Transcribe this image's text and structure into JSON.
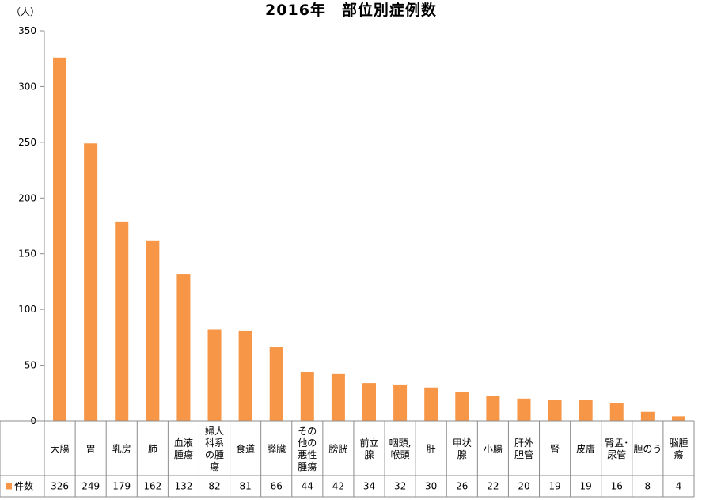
{
  "chart_data": {
    "type": "bar",
    "title": "2016年　部位別症例数",
    "y_unit": "（人）",
    "ylim": [
      0,
      350
    ],
    "y_ticks": [
      0,
      50,
      100,
      150,
      200,
      250,
      300,
      350
    ],
    "grid": false,
    "categories": [
      [
        "大腸"
      ],
      [
        "胃"
      ],
      [
        "乳房"
      ],
      [
        "肺"
      ],
      [
        "血液",
        "腫瘍"
      ],
      [
        "婦人",
        "科系",
        "の腫",
        "瘍"
      ],
      [
        "食道"
      ],
      [
        "膵臓"
      ],
      [
        "その",
        "他の",
        "悪性",
        "腫瘍"
      ],
      [
        "膀胱"
      ],
      [
        "前立",
        "腺"
      ],
      [
        "咽頭,",
        "喉頭"
      ],
      [
        "肝"
      ],
      [
        "甲状",
        "腺"
      ],
      [
        "小腸"
      ],
      [
        "肝外",
        "胆管"
      ],
      [
        "腎"
      ],
      [
        "皮膚"
      ],
      [
        "腎盂･",
        "尿管"
      ],
      [
        "胆のう"
      ],
      [
        "脳腫",
        "瘍"
      ]
    ],
    "series": [
      {
        "name": "件数",
        "color": "#f79646",
        "values": [
          326,
          249,
          179,
          162,
          132,
          82,
          81,
          66,
          44,
          42,
          34,
          32,
          30,
          26,
          22,
          20,
          19,
          19,
          16,
          8,
          4
        ]
      }
    ]
  }
}
